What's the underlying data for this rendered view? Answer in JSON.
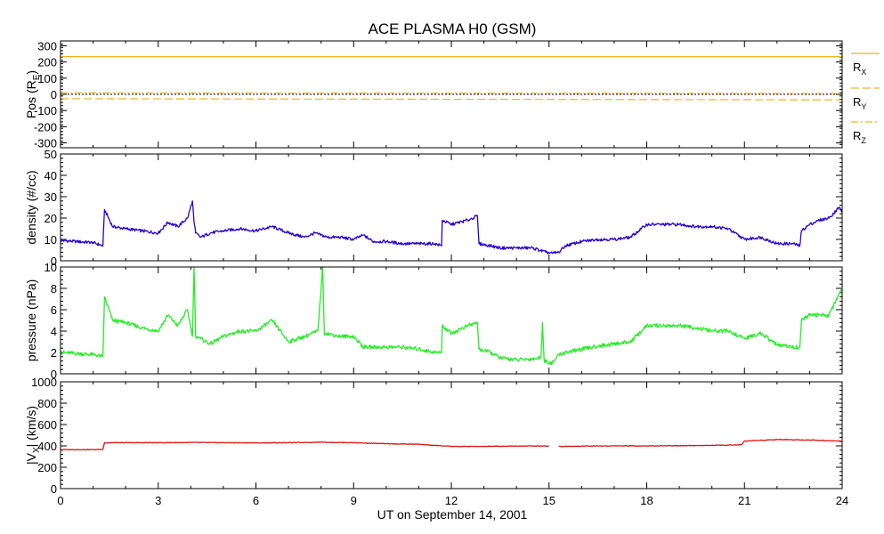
{
  "title": "ACE PLASMA H0 (GSM)",
  "xlabel": "UT on September 14, 2001",
  "x_ticks": [
    0,
    3,
    6,
    9,
    12,
    15,
    18,
    21,
    24
  ],
  "x_range": [
    0,
    24
  ],
  "colors": {
    "position": "#f2b21a",
    "density": "#2a00d0",
    "pressure": "#22ee22",
    "velocity": "#dd1111"
  },
  "chart_data": [
    {
      "type": "line",
      "panel": "position",
      "ylabel": "Pos (R",
      "ylabel_sub": "E",
      "ylabel_end": ")",
      "ylim": [
        -330,
        330
      ],
      "y_ticks": [
        300,
        200,
        100,
        0,
        -100,
        -200,
        -300
      ],
      "legend": [
        {
          "label": "R",
          "sub": "X",
          "style": "solid"
        },
        {
          "label": "R",
          "sub": "Y",
          "style": "dashed"
        },
        {
          "label": "R",
          "sub": "Z",
          "style": "dashdot"
        }
      ],
      "series": [
        {
          "key": "RX",
          "style": "solid",
          "x": [
            0,
            24
          ],
          "y": [
            233,
            233
          ]
        },
        {
          "key": "RY",
          "style": "dashed",
          "x": [
            0,
            24
          ],
          "y": [
            -27,
            -34
          ]
        },
        {
          "key": "RZ",
          "style": "dashdot",
          "x": [
            0,
            24
          ],
          "y": [
            9,
            5
          ]
        }
      ],
      "zero_line": true
    },
    {
      "type": "line",
      "panel": "density",
      "ylabel": "density (#/cc)",
      "ylim": [
        0,
        50
      ],
      "y_ticks": [
        50,
        40,
        30,
        20,
        10,
        0
      ],
      "x": [
        0,
        0.5,
        1.0,
        1.3,
        1.35,
        1.6,
        2.0,
        2.5,
        3.0,
        3.3,
        3.6,
        3.9,
        4.05,
        4.1,
        4.15,
        4.3,
        4.6,
        5.0,
        5.5,
        6.0,
        6.5,
        7.0,
        7.5,
        7.8,
        8.2,
        8.6,
        9.0,
        9.3,
        9.6,
        10.0,
        10.5,
        11.0,
        11.5,
        11.7,
        11.72,
        12.0,
        12.5,
        12.8,
        12.85,
        13.2,
        13.5,
        14.0,
        14.5,
        14.9,
        15.1,
        15.3,
        15.5,
        16.0,
        16.5,
        17.0,
        17.5,
        18.0,
        18.5,
        19.0,
        19.5,
        20.0,
        20.5,
        21.0,
        21.5,
        22.0,
        22.5,
        22.7,
        22.75,
        23.0,
        23.3,
        23.6,
        23.9,
        24.0
      ],
      "values": [
        9.5,
        9.0,
        8.5,
        7,
        24,
        16,
        15,
        14,
        13,
        18,
        16,
        20,
        28,
        18,
        13,
        11,
        13,
        14,
        15,
        14,
        16,
        13,
        11,
        13,
        11,
        11,
        10,
        12,
        9,
        9,
        8,
        8,
        8,
        7,
        19,
        17,
        19,
        21,
        8,
        7,
        6,
        6,
        6,
        4,
        3.5,
        4,
        7,
        9,
        10,
        10,
        11,
        17,
        17,
        17,
        16,
        16,
        15,
        10,
        11,
        8,
        8,
        7,
        14,
        17,
        19,
        20,
        25,
        23
      ]
    },
    {
      "type": "line",
      "panel": "pressure",
      "ylabel": "pressure (nPa)",
      "ylim": [
        0,
        10
      ],
      "y_ticks": [
        10,
        8,
        6,
        4,
        2,
        0
      ],
      "x": [
        0,
        0.5,
        1.0,
        1.3,
        1.35,
        1.6,
        2.0,
        2.5,
        3.0,
        3.3,
        3.6,
        3.9,
        4.05,
        4.1,
        4.15,
        4.2,
        4.3,
        4.6,
        5.0,
        5.5,
        6.0,
        6.5,
        7.0,
        7.5,
        7.9,
        8.05,
        8.1,
        8.15,
        8.6,
        9.0,
        9.3,
        9.6,
        10.0,
        10.5,
        11.0,
        11.5,
        11.7,
        11.72,
        12.0,
        12.5,
        12.8,
        12.85,
        13.2,
        13.5,
        14.0,
        14.5,
        14.75,
        14.8,
        14.85,
        15.1,
        15.3,
        15.5,
        16.0,
        16.5,
        17.0,
        17.5,
        18.0,
        18.5,
        19.0,
        19.5,
        20.0,
        20.5,
        21.0,
        21.5,
        22.0,
        22.5,
        22.7,
        22.75,
        23.0,
        23.3,
        23.6,
        23.9,
        24.0
      ],
      "values": [
        2.0,
        1.9,
        1.8,
        1.6,
        7.2,
        5.0,
        4.8,
        4.3,
        4.0,
        5.5,
        4.5,
        6.0,
        3.5,
        10.0,
        3.5,
        3.5,
        3.3,
        2.8,
        3.5,
        4.0,
        4.0,
        5.0,
        3.0,
        3.5,
        4.0,
        10.0,
        3.8,
        3.8,
        3.5,
        3.5,
        2.5,
        2.5,
        2.5,
        2.5,
        2.3,
        2.0,
        2.0,
        4.5,
        3.8,
        4.5,
        4.8,
        2.3,
        2.0,
        1.5,
        1.3,
        1.4,
        1.5,
        4.8,
        1.2,
        1.0,
        1.8,
        2.0,
        2.3,
        2.6,
        2.8,
        3.0,
        4.5,
        4.5,
        4.5,
        4.3,
        4.0,
        4.0,
        3.3,
        3.8,
        2.7,
        2.5,
        2.5,
        5.0,
        5.5,
        5.5,
        5.5,
        7.5,
        8.0
      ]
    },
    {
      "type": "line",
      "panel": "velocity",
      "ylabel": "|V",
      "ylabel_sub": "X",
      "ylabel_end": "| (km/s)",
      "ylim": [
        0,
        1000
      ],
      "y_ticks": [
        1000,
        800,
        600,
        400,
        200,
        0
      ],
      "x": [
        0,
        0.5,
        1.0,
        1.3,
        1.35,
        2.0,
        3.0,
        4.0,
        5.0,
        6.0,
        7.0,
        8.0,
        9.0,
        10.0,
        11.0,
        12.0,
        13.0,
        14.0,
        15.0,
        15.2,
        15.3,
        16.0,
        17.0,
        18.0,
        19.0,
        20.0,
        20.9,
        21.0,
        22.0,
        23.0,
        24.0
      ],
      "values": [
        365,
        365,
        365,
        367,
        430,
        430,
        430,
        432,
        430,
        428,
        430,
        435,
        430,
        420,
        415,
        395,
        395,
        398,
        400,
        null,
        395,
        398,
        400,
        400,
        402,
        405,
        410,
        445,
        460,
        455,
        445
      ]
    }
  ]
}
